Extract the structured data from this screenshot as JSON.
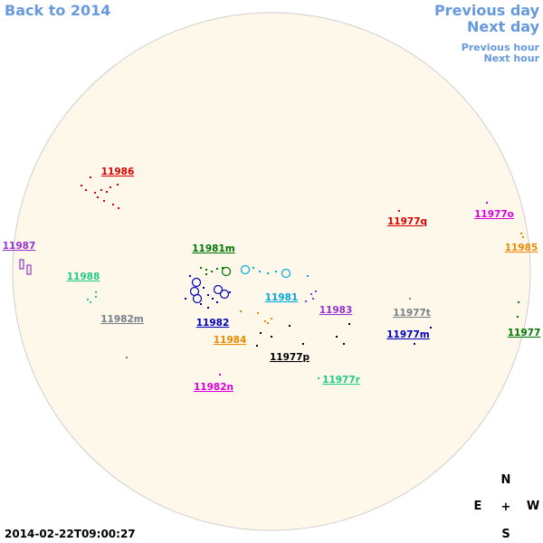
{
  "nav": {
    "back": "Back to 2014",
    "previous_day": "Previous day",
    "next_day": "Next day",
    "previous_hour": "Previous hour",
    "next_hour": "Next hour"
  },
  "regions": [
    {
      "label": "11986",
      "color": "#dd0000"
    },
    {
      "label": "11987",
      "color": "#9933cc"
    },
    {
      "label": "11988",
      "color": "#22cc88"
    },
    {
      "label": "11982m",
      "color": "#778088"
    },
    {
      "label": "11981m",
      "color": "#007700"
    },
    {
      "label": "11981",
      "color": "#00aadd"
    },
    {
      "label": "11982",
      "color": "#0000bb"
    },
    {
      "label": "11984",
      "color": "#ee8800"
    },
    {
      "label": "11983",
      "color": "#9933cc"
    },
    {
      "label": "11977p",
      "color": "#000000"
    },
    {
      "label": "11982n",
      "color": "#dd00dd"
    },
    {
      "label": "11977r",
      "color": "#22cc88"
    },
    {
      "label": "11977t",
      "color": "#778088"
    },
    {
      "label": "11977m",
      "color": "#0000bb"
    },
    {
      "label": "11977q",
      "color": "#dd0000"
    },
    {
      "label": "11977o",
      "color": "#dd00dd"
    },
    {
      "label": "11985",
      "color": "#ee8800"
    },
    {
      "label": "11977",
      "color": "#007700"
    }
  ],
  "compass": {
    "n": "N",
    "e": "E",
    "center": "+",
    "w": "W",
    "s": "S"
  },
  "timestamp": "2014-02-22T09:00:27"
}
